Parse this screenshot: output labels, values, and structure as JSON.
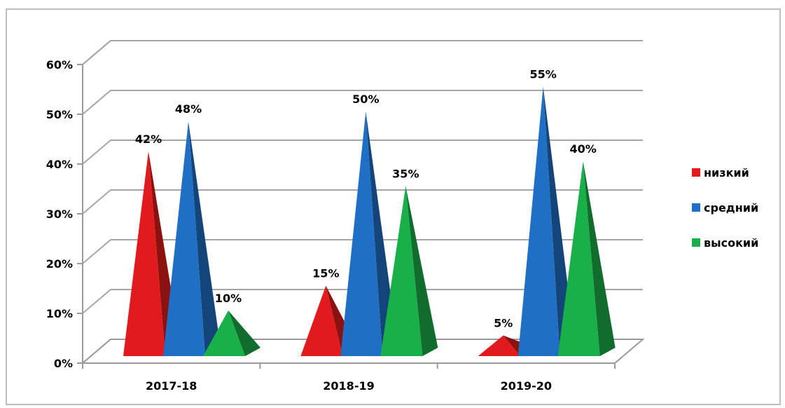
{
  "chart_data": {
    "type": "bar",
    "bar_shape": "pyramid-3d",
    "categories": [
      "2017-18",
      "2018-19",
      "2019-20"
    ],
    "series": [
      {
        "name": "низкий",
        "values": [
          42,
          15,
          5
        ],
        "labels": [
          "42%",
          "15%",
          "5%"
        ],
        "color": "#e11b1b"
      },
      {
        "name": "средний",
        "values": [
          48,
          50,
          55
        ],
        "labels": [
          "48%",
          "50%",
          "55%"
        ],
        "color": "#1f6fc5"
      },
      {
        "name": "высокий",
        "values": [
          10,
          35,
          40
        ],
        "labels": [
          "10%",
          "35%",
          "40%"
        ],
        "color": "#19b04a"
      }
    ],
    "yticks": [
      "0%",
      "10%",
      "20%",
      "30%",
      "40%",
      "50%",
      "60%"
    ],
    "ylim": [
      0,
      60
    ],
    "grid": true,
    "legend": "right"
  }
}
